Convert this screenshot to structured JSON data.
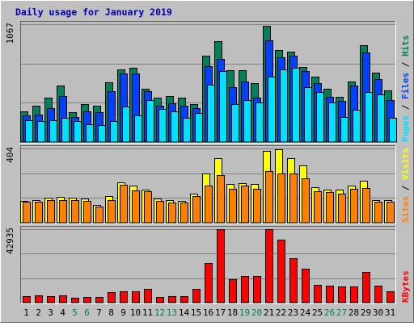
{
  "colors": {
    "background": "#C0C0C0",
    "plot_bg": "#BEBEBE",
    "title": "#0000B0",
    "hits": "#00805C",
    "files": "#0040FF",
    "pages": "#00E0FF",
    "visits": "#FFFF00",
    "sites": "#FF8000",
    "kbytes": "#FF0000",
    "weekend_label": "#00805C",
    "weekday_label": "#000000"
  },
  "chart_data": {
    "type": "bar",
    "title": "Daily usage for January 2019",
    "categories": [
      "1",
      "2",
      "3",
      "4",
      "5",
      "6",
      "7",
      "8",
      "9",
      "10",
      "11",
      "12",
      "13",
      "14",
      "15",
      "16",
      "17",
      "18",
      "19",
      "20",
      "21",
      "22",
      "23",
      "24",
      "25",
      "26",
      "27",
      "28",
      "29",
      "30",
      "31"
    ],
    "weekend_days": [
      "5",
      "6",
      "12",
      "13",
      "19",
      "20",
      "26",
      "27"
    ],
    "panels": [
      {
        "id": "hits-files-pages",
        "max_label": "1067",
        "ylim": [
          0,
          1067
        ],
        "legend": [
          "Pages",
          "Files",
          "Hits"
        ],
        "series": [
          {
            "name": "Hits",
            "values": [
              280,
              330,
              400,
              510,
              270,
              340,
              330,
              540,
              660,
              670,
              480,
              400,
              420,
              400,
              340,
              780,
              910,
              650,
              650,
              530,
              1055,
              830,
              820,
              680,
              590,
              480,
              410,
              550,
              880,
              630,
              470
            ]
          },
          {
            "name": "Files",
            "values": [
              240,
              250,
              310,
              420,
              230,
              280,
              270,
              460,
              620,
              620,
              460,
              330,
              350,
              330,
              310,
              690,
              750,
              500,
              550,
              400,
              920,
              770,
              780,
              640,
              530,
              410,
              370,
              510,
              810,
              570,
              380
            ]
          },
          {
            "name": "Pages",
            "values": [
              200,
              190,
              200,
              220,
              190,
              160,
              150,
              190,
              320,
              240,
              380,
              300,
              280,
              220,
              260,
              520,
              640,
              340,
              380,
              360,
              590,
              660,
              670,
              500,
              450,
              360,
              230,
              290,
              450,
              430,
              220
            ]
          }
        ]
      },
      {
        "id": "visits-sites",
        "max_label": "404",
        "ylim": [
          0,
          404
        ],
        "legend": [
          "Sites",
          "Visits"
        ],
        "series": [
          {
            "name": "Visits",
            "values": [
              120,
              125,
              135,
              140,
              135,
              130,
              95,
              145,
              220,
              200,
              180,
              130,
              125,
              120,
              160,
              270,
              350,
              210,
              215,
              210,
              390,
              400,
              350,
              310,
              195,
              180,
              180,
              200,
              230,
              125,
              125
            ]
          },
          {
            "name": "Sites",
            "values": [
              115,
              115,
              125,
              125,
              125,
              120,
              90,
              125,
              205,
              175,
              170,
              120,
              110,
              110,
              145,
              200,
              260,
              185,
              200,
              185,
              280,
              270,
              270,
              240,
              170,
              165,
              160,
              185,
              190,
              115,
              115
            ]
          }
        ]
      },
      {
        "id": "kbytes",
        "max_label": "42935",
        "ylim": [
          0,
          42935
        ],
        "legend": [
          "KBytes"
        ],
        "series": [
          {
            "name": "KBytes",
            "values": [
              3600,
              4300,
              4000,
              4200,
              2600,
              3400,
              3100,
              6000,
              6600,
              6400,
              8000,
              3300,
              3700,
              3900,
              8200,
              23000,
              42900,
              13800,
              15800,
              15800,
              42800,
              36700,
              26000,
              19800,
              10400,
              10100,
              9400,
              9400,
              18000,
              9700,
              6500
            ]
          }
        ]
      }
    ]
  }
}
